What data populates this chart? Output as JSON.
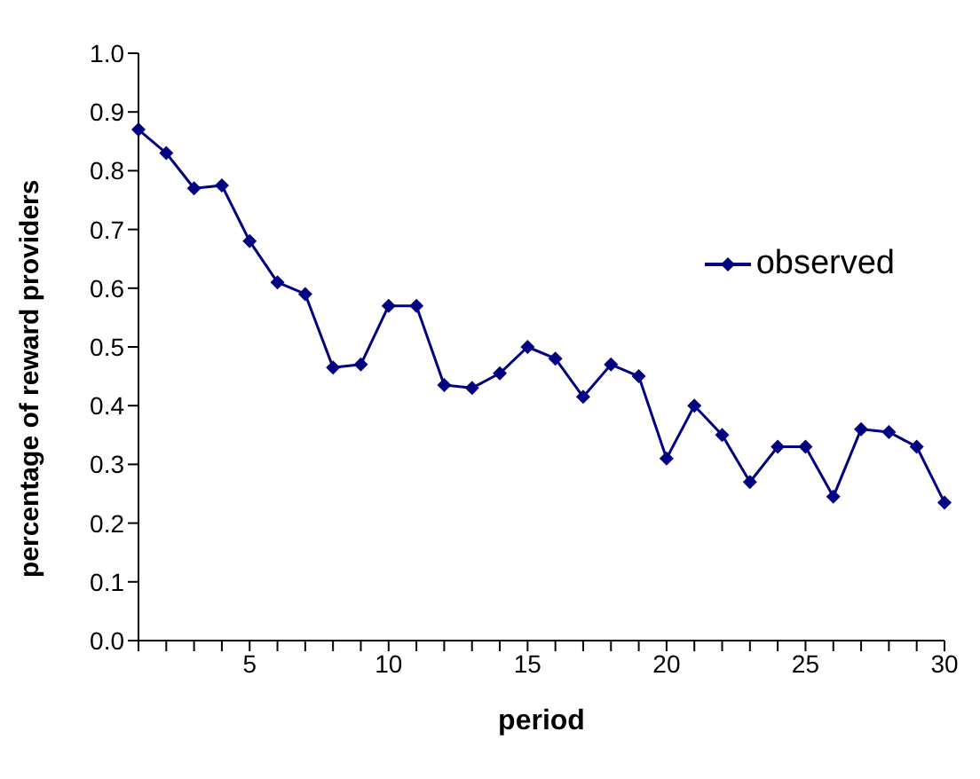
{
  "chart_data": {
    "type": "line",
    "xlabel": "period",
    "ylabel": "percentage of reward providers",
    "categories": [
      null,
      null,
      null,
      null,
      "5",
      null,
      null,
      null,
      null,
      "10",
      null,
      null,
      null,
      null,
      "15",
      null,
      null,
      null,
      null,
      "20",
      null,
      null,
      null,
      null,
      "25",
      null,
      null,
      null,
      null,
      "30"
    ],
    "series": [
      {
        "name": "observed",
        "color": "#000080",
        "values": [
          0.87,
          0.83,
          0.77,
          0.775,
          0.68,
          0.61,
          0.59,
          0.465,
          0.47,
          0.57,
          0.57,
          0.435,
          0.43,
          0.455,
          0.5,
          0.48,
          0.415,
          0.47,
          0.45,
          0.31,
          0.4,
          0.35,
          0.27,
          0.33,
          0.33,
          0.245,
          0.36,
          0.355,
          0.33,
          0.235
        ]
      }
    ],
    "ylim": [
      0,
      1
    ],
    "yticks": [
      {
        "value": 0,
        "label": "0.0"
      },
      0.1,
      0.2,
      0.3,
      0.4,
      0.5,
      0.6,
      0.7,
      0.8,
      0.9,
      {
        "value": 1,
        "label": "1.0"
      }
    ],
    "grid": false,
    "legend": "top right",
    "marker": "diamond",
    "line_style": "solid"
  }
}
